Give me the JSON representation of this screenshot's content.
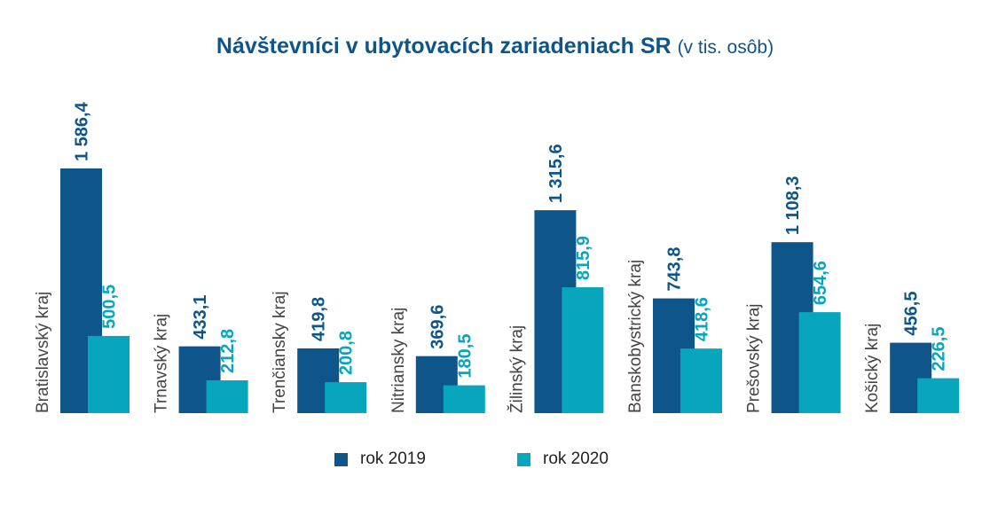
{
  "title": {
    "main": "Návštevníci v ubytovacích zariadeniach SR",
    "unit": "(v tis. osôb)"
  },
  "colors": {
    "series2019": "#0e5589",
    "series2020": "#07a6bd",
    "value2019": "#0e5589",
    "value2020": "#07a6bd",
    "category": "#444444"
  },
  "legend": {
    "item2019": "rok 2019",
    "item2020": "rok 2020"
  },
  "chart_data": {
    "type": "bar",
    "title": "Návštevníci v ubytovacích zariadeniach SR (v tis. osôb)",
    "xlabel": "",
    "ylabel": "",
    "ylim": [
      0,
      1600
    ],
    "grid": false,
    "legend_position": "bottom",
    "categories": [
      "Bratislavský kraj",
      "Trnavský kraj",
      "Trenčiansky kraj",
      "Nitriansky kraj",
      "Žilinský kraj",
      "Banskobystrický kraj",
      "Prešovský kraj",
      "Košický kraj"
    ],
    "series": [
      {
        "name": "rok 2019",
        "values": [
          1586.4,
          433.1,
          419.8,
          369.6,
          1315.6,
          743.8,
          1108.3,
          456.5
        ],
        "labels": [
          "1 586,4",
          "433,1",
          "419,8",
          "369,6",
          "1 315,6",
          "743,8",
          "1 108,3",
          "456,5"
        ]
      },
      {
        "name": "rok 2020",
        "values": [
          500.5,
          212.8,
          200.8,
          180.5,
          815.9,
          418.6,
          654.6,
          226.5
        ],
        "labels": [
          "500,5",
          "212,8",
          "200,8",
          "180,5",
          "815,9",
          "418,6",
          "654,6",
          "226,5"
        ]
      }
    ]
  }
}
